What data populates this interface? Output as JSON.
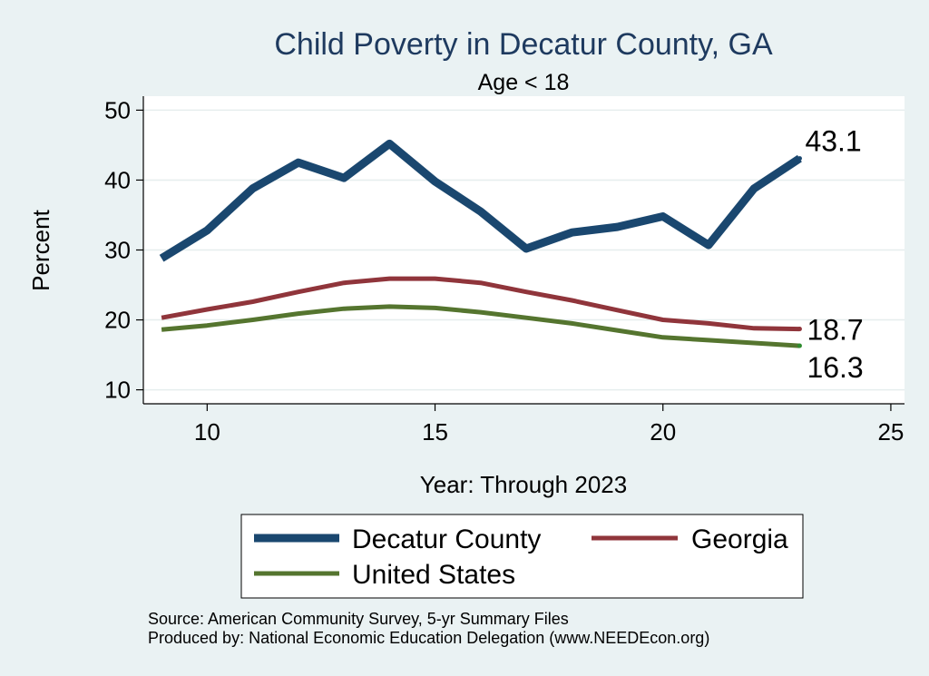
{
  "chart_data": {
    "type": "line",
    "title": "Child Poverty in Decatur County, GA",
    "subtitle": "Age < 18",
    "xlabel": "Year: Through 2023",
    "ylabel": "Percent",
    "xlim": [
      8.6,
      25.3
    ],
    "ylim": [
      8,
      52
    ],
    "xticks": [
      10,
      15,
      20,
      25
    ],
    "yticks": [
      10,
      20,
      30,
      40,
      50
    ],
    "grid": true,
    "x": [
      9,
      10,
      11,
      12,
      13,
      14,
      15,
      16,
      17,
      18,
      19,
      20,
      21,
      22,
      23
    ],
    "series": [
      {
        "name": "Decatur County",
        "color": "#1a476f",
        "values": [
          28.8,
          32.8,
          38.8,
          42.5,
          40.3,
          45.2,
          39.8,
          35.5,
          30.2,
          32.5,
          33.3,
          34.8,
          30.7,
          38.8,
          43.1
        ],
        "end_label": "43.1"
      },
      {
        "name": "Georgia",
        "color": "#90353b",
        "values": [
          20.3,
          21.5,
          22.6,
          24.0,
          25.3,
          25.9,
          25.9,
          25.3,
          24.0,
          22.8,
          21.4,
          20.0,
          19.5,
          18.8,
          18.7
        ],
        "end_label": "18.7"
      },
      {
        "name": "United States",
        "color": "#55752f",
        "values": [
          18.6,
          19.2,
          20.0,
          20.9,
          21.6,
          21.9,
          21.7,
          21.1,
          20.3,
          19.5,
          18.5,
          17.5,
          17.1,
          16.7,
          16.3
        ],
        "end_label": "16.3"
      }
    ],
    "legend_position": "bottom",
    "source_note": "Source: American Community Survey, 5-yr Summary Files",
    "producer_note": "Produced by: National Economic Education Delegation (www.NEEDEcon.org)"
  }
}
